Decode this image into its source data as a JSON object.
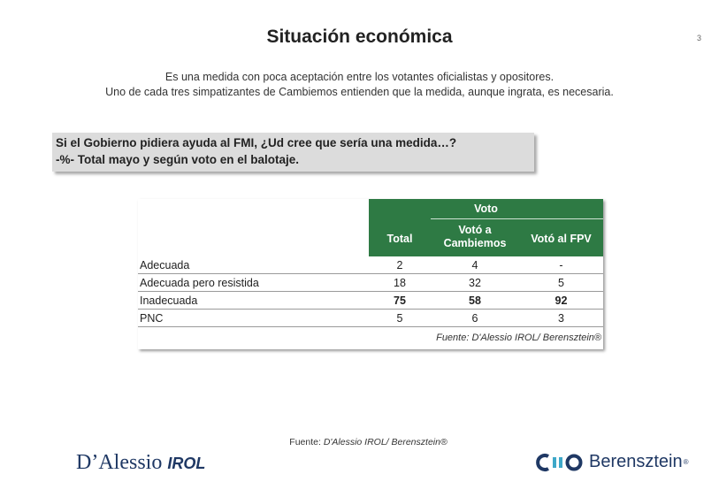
{
  "slide": {
    "title": "Situación económica",
    "page_number": "3",
    "subtitle_line1": "Es una medida con poca aceptación entre los votantes oficialistas y opositores.",
    "subtitle_line2": "Uno de cada tres simpatizantes de Cambiemos entienden que la medida, aunque ingrata, es necesaria."
  },
  "question": {
    "line1": "Si el Gobierno pidiera ayuda al FMI, ¿Ud cree que sería una medida…?",
    "line2": "-%- Total mayo y según voto en el balotaje."
  },
  "table": {
    "group_header": "Voto",
    "col_total": "Total",
    "col_cambiemos_l1": "Votó a",
    "col_cambiemos_l2": "Cambiemos",
    "col_fpv": "Votó al FPV",
    "rows": [
      {
        "label": "Adecuada",
        "total": "2",
        "cambiemos": "4",
        "fpv": "-"
      },
      {
        "label": "Adecuada pero resistida",
        "total": "18",
        "cambiemos": "32",
        "fpv": "5"
      },
      {
        "label": "Inadecuada",
        "total": "75",
        "cambiemos": "58",
        "fpv": "92"
      },
      {
        "label": "PNC",
        "total": "5",
        "cambiemos": "6",
        "fpv": "3"
      }
    ],
    "source": "Fuente: D'Alessio IROL/ Berensztein®"
  },
  "footer": {
    "source_prefix": "Fuente: ",
    "source_text": "D'Alessio IROL/ Berensztein®",
    "logo_left_main": "D’Alessio",
    "logo_left_sub": "IROL",
    "logo_right_name": "Berensztein",
    "logo_right_reg": "®"
  },
  "colors": {
    "header_green": "#2e7a44",
    "logo_blue": "#1f3864",
    "logo_accent": "#3ea8c8"
  },
  "icons": {
    "berensztein_logo_mark": "berensztein-logo-icon"
  }
}
